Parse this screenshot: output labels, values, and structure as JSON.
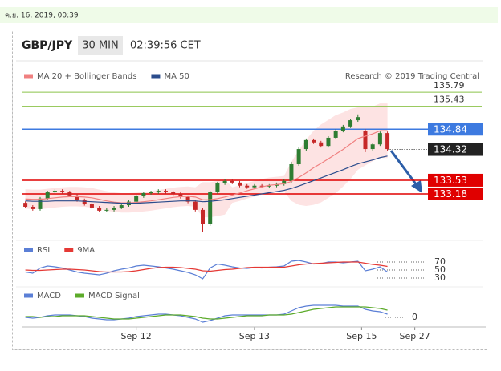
{
  "timestamp": "ค.ย. 16, 2019, 00:39",
  "widget": {
    "symbol": "GBP/JPY",
    "interval": "30 MIN",
    "time": "02:39:56 CET",
    "credit": "Research © 2019 Trading Central"
  },
  "chart_data": [
    {
      "type": "candlestick",
      "xlim": [
        -0.5,
        62.3
      ],
      "ylim": [
        132.13,
        136.1
      ],
      "up_color": "#2e7d32",
      "down_color": "#c62828",
      "open": [
        132.95,
        132.85,
        132.79,
        133.06,
        133.22,
        133.26,
        133.22,
        133.14,
        133.02,
        132.92,
        132.83,
        132.75,
        132.77,
        132.83,
        132.89,
        132.98,
        133.12,
        133.2,
        133.22,
        133.26,
        133.22,
        133.18,
        133.1,
        132.98,
        132.77,
        132.4,
        133.22,
        133.45,
        133.51,
        133.47,
        133.39,
        133.35,
        133.39,
        133.37,
        133.39,
        133.43,
        133.51,
        133.94,
        134.33,
        134.56,
        134.5,
        134.41,
        134.62,
        134.8,
        134.91,
        135.07,
        134.8,
        134.33,
        134.45,
        134.74
      ],
      "high": [
        132.99,
        132.89,
        133.1,
        133.26,
        133.3,
        133.3,
        133.26,
        133.18,
        133.06,
        132.96,
        132.87,
        132.81,
        132.87,
        132.93,
        133.02,
        133.16,
        133.24,
        133.26,
        133.3,
        133.3,
        133.26,
        133.22,
        133.14,
        133.02,
        132.81,
        133.26,
        133.49,
        133.55,
        133.55,
        133.51,
        133.43,
        133.43,
        133.43,
        133.43,
        133.47,
        133.55,
        134.0,
        134.37,
        134.6,
        134.6,
        134.54,
        134.66,
        134.84,
        134.95,
        135.11,
        135.22,
        134.84,
        134.49,
        134.78,
        134.78
      ],
      "low": [
        132.81,
        132.75,
        132.75,
        133.02,
        133.18,
        133.18,
        133.1,
        132.98,
        132.88,
        132.79,
        132.71,
        132.71,
        132.73,
        132.79,
        132.85,
        132.94,
        133.08,
        133.16,
        133.18,
        133.18,
        133.14,
        133.06,
        132.94,
        132.73,
        132.2,
        132.36,
        133.18,
        133.41,
        133.43,
        133.35,
        133.31,
        133.31,
        133.33,
        133.33,
        133.35,
        133.39,
        133.47,
        133.9,
        134.29,
        134.46,
        134.37,
        134.37,
        134.58,
        134.76,
        134.87,
        135.03,
        134.25,
        134.29,
        134.41,
        134.29
      ],
      "close": [
        132.85,
        132.79,
        133.06,
        133.22,
        133.26,
        133.22,
        133.14,
        133.02,
        132.92,
        132.83,
        132.75,
        132.77,
        132.83,
        132.89,
        132.98,
        133.12,
        133.2,
        133.22,
        133.26,
        133.22,
        133.18,
        133.1,
        132.98,
        132.77,
        132.4,
        133.22,
        133.45,
        133.51,
        133.47,
        133.39,
        133.35,
        133.39,
        133.37,
        133.39,
        133.43,
        133.51,
        133.94,
        134.33,
        134.56,
        134.5,
        134.41,
        134.62,
        134.8,
        134.91,
        135.07,
        135.15,
        134.33,
        134.45,
        134.74,
        134.33
      ],
      "band": {
        "color": "#fcd9d9",
        "upper": [
          133.3,
          133.29,
          133.29,
          133.31,
          133.33,
          133.35,
          133.36,
          133.36,
          133.35,
          133.33,
          133.29,
          133.25,
          133.22,
          133.2,
          133.2,
          133.21,
          133.23,
          133.25,
          133.28,
          133.31,
          133.34,
          133.36,
          133.37,
          133.35,
          133.48,
          133.48,
          133.51,
          133.55,
          133.35,
          133.4,
          133.46,
          133.51,
          133.56,
          133.6,
          133.62,
          133.64,
          134.0,
          134.3,
          134.57,
          134.8,
          134.96,
          135.08,
          135.2,
          135.27,
          135.36,
          135.4,
          135.41,
          135.42,
          135.5,
          135.5
        ],
        "lower": [
          132.8,
          132.79,
          132.79,
          132.81,
          132.83,
          132.85,
          132.86,
          132.86,
          132.85,
          132.83,
          132.79,
          132.75,
          132.72,
          132.7,
          132.7,
          132.71,
          132.73,
          132.75,
          132.78,
          132.81,
          132.84,
          132.86,
          132.87,
          132.85,
          132.58,
          132.58,
          132.61,
          132.65,
          132.95,
          133.0,
          133.06,
          133.11,
          133.16,
          133.2,
          133.22,
          133.24,
          133.0,
          132.9,
          132.87,
          132.9,
          132.96,
          133.08,
          133.2,
          133.37,
          133.56,
          133.8,
          133.91,
          134.02,
          134.1,
          134.1
        ]
      },
      "series": [
        {
          "name": "MA 20 + Bollinger Bands",
          "color": "#f08080",
          "values": [
            133.05,
            133.04,
            133.04,
            133.06,
            133.08,
            133.1,
            133.11,
            133.11,
            133.1,
            133.08,
            133.04,
            133.0,
            132.97,
            132.95,
            132.95,
            132.96,
            132.98,
            133.0,
            133.03,
            133.06,
            133.09,
            133.11,
            133.12,
            133.1,
            133.03,
            133.03,
            133.06,
            133.1,
            133.15,
            133.2,
            133.26,
            133.31,
            133.36,
            133.4,
            133.42,
            133.44,
            133.5,
            133.6,
            133.72,
            133.85,
            133.96,
            134.08,
            134.2,
            134.32,
            134.46,
            134.6,
            134.66,
            134.72,
            134.8,
            134.8
          ]
        },
        {
          "name": "MA 50",
          "color": "#2b4c8c",
          "values": [
            133.0,
            132.99,
            132.99,
            132.99,
            133.0,
            133.0,
            133.0,
            133.0,
            132.99,
            132.98,
            132.97,
            132.96,
            132.95,
            132.94,
            132.94,
            132.94,
            132.95,
            132.96,
            132.97,
            132.98,
            132.99,
            133.0,
            133.0,
            133.0,
            132.98,
            132.99,
            133.01,
            133.03,
            133.06,
            133.09,
            133.12,
            133.15,
            133.18,
            133.21,
            133.24,
            133.27,
            133.32,
            133.38,
            133.45,
            133.52,
            133.59,
            133.66,
            133.73,
            133.8,
            133.88,
            133.95,
            134.0,
            134.05,
            134.11,
            134.15
          ]
        }
      ],
      "levels": [
        {
          "value": 135.79,
          "color": "#8bc34a",
          "style": "text"
        },
        {
          "value": 135.43,
          "color": "#8bc34a",
          "style": "text"
        },
        {
          "value": 134.84,
          "color": "#3d7ae0",
          "style": "box"
        },
        {
          "value": 134.32,
          "color": "#222222",
          "style": "box",
          "dotted": true
        },
        {
          "value": 133.53,
          "color": "#e00000",
          "style": "box"
        },
        {
          "value": 133.18,
          "color": "#e00000",
          "style": "box"
        }
      ]
    },
    {
      "type": "line",
      "xlim": [
        -0.5,
        62.3
      ],
      "ylim": [
        0,
        100
      ],
      "yticks": [
        70,
        50,
        30
      ],
      "series": [
        {
          "name": "RSI",
          "color": "#5b7fd6",
          "values": [
            45,
            42,
            55,
            60,
            58,
            55,
            50,
            45,
            42,
            40,
            38,
            42,
            48,
            52,
            55,
            60,
            62,
            60,
            58,
            55,
            52,
            48,
            44,
            38,
            28,
            55,
            65,
            62,
            58,
            55,
            54,
            56,
            55,
            57,
            58,
            60,
            72,
            74,
            70,
            65,
            66,
            70,
            70,
            68,
            70,
            72,
            48,
            52,
            58,
            45
          ]
        },
        {
          "name": "9MA",
          "color": "#e53935",
          "values": [
            50,
            49,
            49,
            50,
            51,
            52,
            52,
            51,
            50,
            48,
            46,
            45,
            45,
            45,
            46,
            48,
            51,
            54,
            56,
            57,
            57,
            56,
            54,
            52,
            48,
            47,
            49,
            51,
            52,
            54,
            56,
            57,
            57,
            57,
            57,
            57,
            60,
            63,
            65,
            66,
            67,
            68,
            69,
            70,
            70,
            70,
            67,
            64,
            62,
            59
          ]
        }
      ]
    },
    {
      "type": "line",
      "xlim": [
        -0.5,
        62.3
      ],
      "ylim": [
        -0.12,
        0.2
      ],
      "yticks": [
        0
      ],
      "xticks": [
        {
          "value": 15,
          "label": "Sep 12"
        },
        {
          "value": 31,
          "label": "Sep 13"
        },
        {
          "value": 45.5,
          "label": "Sep 15"
        },
        {
          "value": 52.7,
          "label": "Sep 27"
        }
      ],
      "series": [
        {
          "name": "MACD",
          "color": "#5b7fd6",
          "values": [
            0.0,
            -0.01,
            0.0,
            0.02,
            0.03,
            0.03,
            0.03,
            0.02,
            0.01,
            -0.01,
            -0.02,
            -0.03,
            -0.03,
            -0.02,
            -0.01,
            0.01,
            0.02,
            0.03,
            0.04,
            0.04,
            0.03,
            0.02,
            0.0,
            -0.02,
            -0.06,
            -0.04,
            -0.01,
            0.02,
            0.03,
            0.03,
            0.03,
            0.03,
            0.03,
            0.03,
            0.03,
            0.04,
            0.08,
            0.12,
            0.14,
            0.15,
            0.15,
            0.15,
            0.15,
            0.14,
            0.14,
            0.14,
            0.1,
            0.08,
            0.07,
            0.04
          ]
        },
        {
          "name": "MACD Signal",
          "color": "#5cab2a",
          "values": [
            0.01,
            0.01,
            0.0,
            0.01,
            0.01,
            0.02,
            0.02,
            0.02,
            0.02,
            0.01,
            0.0,
            -0.01,
            -0.02,
            -0.02,
            -0.02,
            -0.01,
            0.0,
            0.01,
            0.02,
            0.03,
            0.03,
            0.03,
            0.02,
            0.01,
            -0.01,
            -0.02,
            -0.02,
            -0.01,
            0.0,
            0.01,
            0.02,
            0.02,
            0.02,
            0.03,
            0.03,
            0.03,
            0.04,
            0.06,
            0.08,
            0.1,
            0.11,
            0.12,
            0.13,
            0.13,
            0.13,
            0.13,
            0.13,
            0.12,
            0.11,
            0.09
          ]
        }
      ]
    }
  ]
}
